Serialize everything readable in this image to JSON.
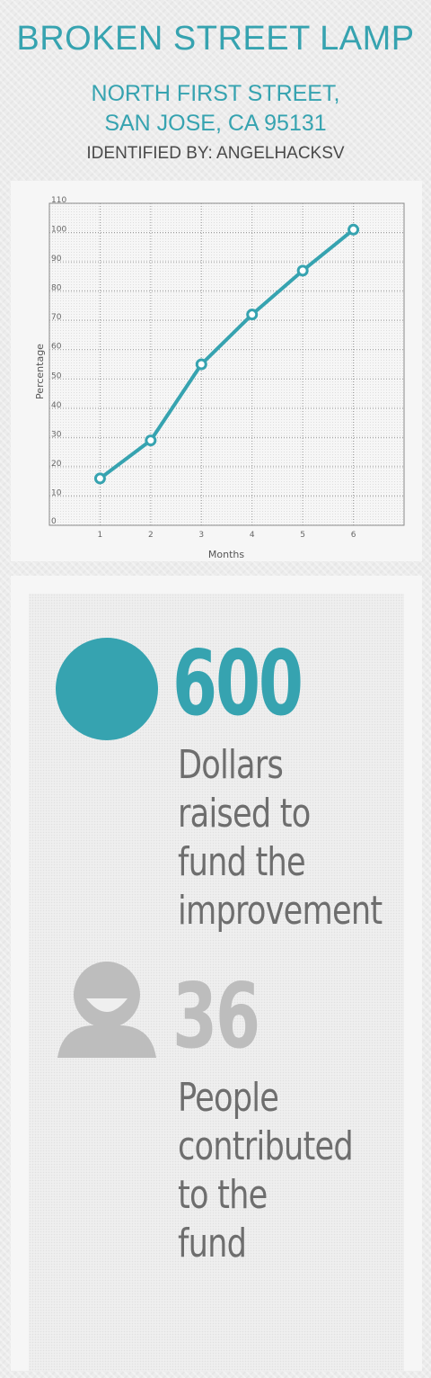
{
  "header": {
    "title": "BROKEN STREET LAMP",
    "address_line1": "NORTH FIRST STREET,",
    "address_line2": "SAN JOSE, CA 95131",
    "identified_by": "IDENTIFIED BY: ANGELHACKSV"
  },
  "chart_data": {
    "type": "line",
    "x": [
      1,
      2,
      3,
      4,
      5,
      6
    ],
    "values": [
      16,
      29,
      55,
      72,
      87,
      101
    ],
    "xlabel": "Months",
    "ylabel": "Percentage",
    "xlim": [
      0,
      7
    ],
    "ylim": [
      0,
      110
    ],
    "x_ticks": [
      "1",
      "2",
      "3",
      "4",
      "5",
      "6"
    ],
    "y_ticks": [
      "0",
      "10",
      "20",
      "30",
      "40",
      "50",
      "60",
      "70",
      "80",
      "90",
      "100",
      "110"
    ],
    "grid": true,
    "color": "#36a3b0"
  },
  "stats": {
    "dollars": {
      "value": "600",
      "line1": "Dollars",
      "line2": "raised to",
      "line3": "fund the",
      "line4": "improvement",
      "color": "#36a3b0"
    },
    "people": {
      "value": "36",
      "line1": "People",
      "line2": "contributed",
      "line3": "to the",
      "line4": "fund",
      "color": "#bdbdbd"
    }
  },
  "icons": {
    "dollars_icon": "circle-icon",
    "people_icon": "person-icon"
  }
}
